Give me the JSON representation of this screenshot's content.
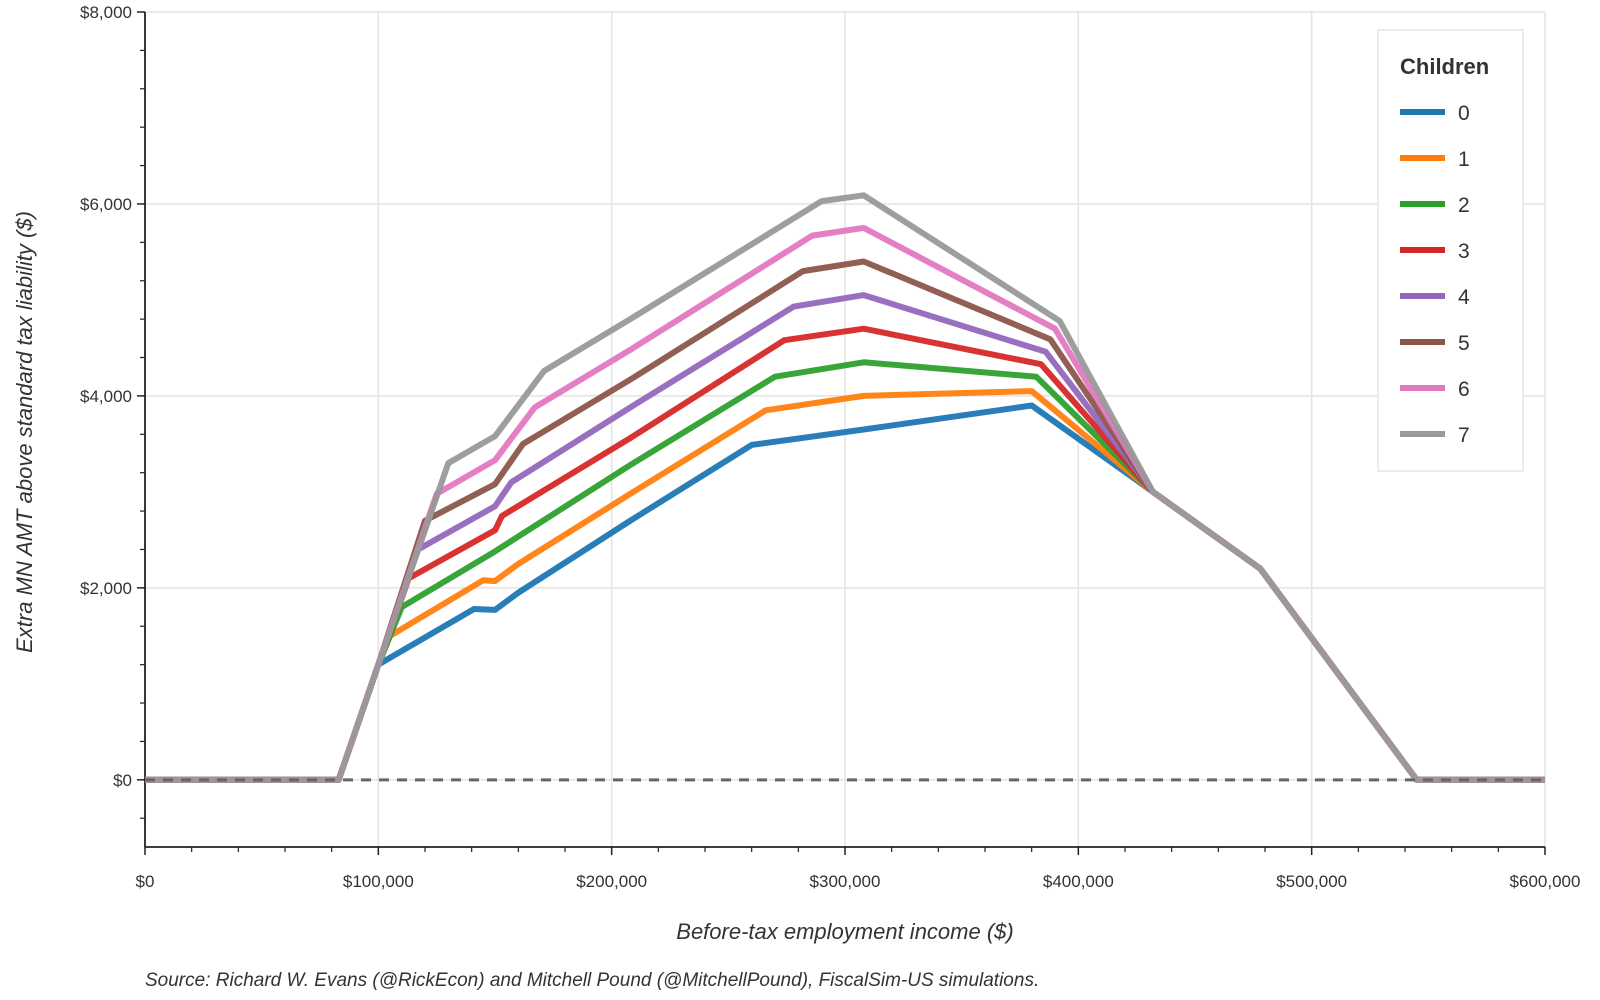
{
  "chart_data": {
    "type": "line",
    "title": "",
    "xlabel": "Before-tax employment income ($)",
    "ylabel": "Extra MN AMT above standard tax liability ($)",
    "source": "Source: Richard W. Evans (@RickEcon) and Mitchell Pound (@MitchellPound), FiscalSim-US simulations.",
    "xlim": [
      0,
      600000
    ],
    "ylim": [
      -700,
      8000
    ],
    "x_ticks": [
      0,
      100000,
      200000,
      300000,
      400000,
      500000,
      600000
    ],
    "x_tick_labels": [
      "$0",
      "$100,000",
      "$200,000",
      "$300,000",
      "$400,000",
      "$500,000",
      "$600,000"
    ],
    "y_ticks": [
      0,
      2000,
      4000,
      6000,
      8000
    ],
    "y_tick_labels": [
      "$0",
      "$2,000",
      "$4,000",
      "$6,000",
      "$8,000"
    ],
    "grid": true,
    "zero_line": "dashed",
    "legend": {
      "title": "Children",
      "position": "top-right"
    },
    "series": [
      {
        "name": "0",
        "color": "#1f77b4",
        "points": [
          [
            0,
            0
          ],
          [
            83000,
            0
          ],
          [
            100000,
            1200
          ],
          [
            141000,
            1780
          ],
          [
            150000,
            1770
          ],
          [
            160000,
            1950
          ],
          [
            208000,
            2700
          ],
          [
            260000,
            3490
          ],
          [
            308000,
            3650
          ],
          [
            380000,
            3900
          ],
          [
            432000,
            3000
          ],
          [
            478000,
            2200
          ],
          [
            545000,
            0
          ],
          [
            600000,
            0
          ]
        ]
      },
      {
        "name": "1",
        "color": "#ff7f0e",
        "points": [
          [
            0,
            0
          ],
          [
            83000,
            0
          ],
          [
            100000,
            1200
          ],
          [
            105000,
            1500
          ],
          [
            145000,
            2080
          ],
          [
            150000,
            2070
          ],
          [
            160000,
            2250
          ],
          [
            208000,
            2980
          ],
          [
            266000,
            3850
          ],
          [
            308000,
            4000
          ],
          [
            380000,
            4050
          ],
          [
            432000,
            3000
          ],
          [
            478000,
            2200
          ],
          [
            545000,
            0
          ],
          [
            600000,
            0
          ]
        ]
      },
      {
        "name": "2",
        "color": "#2ca02c",
        "points": [
          [
            0,
            0
          ],
          [
            83000,
            0
          ],
          [
            100000,
            1200
          ],
          [
            110000,
            1800
          ],
          [
            150000,
            2380
          ],
          [
            208000,
            3280
          ],
          [
            270000,
            4200
          ],
          [
            308000,
            4350
          ],
          [
            382000,
            4200
          ],
          [
            432000,
            3000
          ],
          [
            478000,
            2200
          ],
          [
            545000,
            0
          ],
          [
            600000,
            0
          ]
        ]
      },
      {
        "name": "3",
        "color": "#d62728",
        "points": [
          [
            0,
            0
          ],
          [
            83000,
            0
          ],
          [
            100000,
            1200
          ],
          [
            113000,
            2100
          ],
          [
            150000,
            2600
          ],
          [
            153000,
            2750
          ],
          [
            208000,
            3560
          ],
          [
            274000,
            4580
          ],
          [
            308000,
            4700
          ],
          [
            384000,
            4330
          ],
          [
            432000,
            3000
          ],
          [
            478000,
            2200
          ],
          [
            545000,
            0
          ],
          [
            600000,
            0
          ]
        ]
      },
      {
        "name": "4",
        "color": "#9467bd",
        "points": [
          [
            0,
            0
          ],
          [
            83000,
            0
          ],
          [
            100000,
            1200
          ],
          [
            117000,
            2400
          ],
          [
            150000,
            2850
          ],
          [
            157000,
            3100
          ],
          [
            208000,
            3880
          ],
          [
            278000,
            4930
          ],
          [
            308000,
            5050
          ],
          [
            386000,
            4460
          ],
          [
            432000,
            3000
          ],
          [
            478000,
            2200
          ],
          [
            545000,
            0
          ],
          [
            600000,
            0
          ]
        ]
      },
      {
        "name": "5",
        "color": "#8c564b",
        "points": [
          [
            0,
            0
          ],
          [
            83000,
            0
          ],
          [
            100000,
            1200
          ],
          [
            120000,
            2700
          ],
          [
            150000,
            3080
          ],
          [
            162000,
            3500
          ],
          [
            208000,
            4170
          ],
          [
            282000,
            5300
          ],
          [
            308000,
            5400
          ],
          [
            388000,
            4590
          ],
          [
            432000,
            3000
          ],
          [
            478000,
            2200
          ],
          [
            545000,
            0
          ],
          [
            600000,
            0
          ]
        ]
      },
      {
        "name": "6",
        "color": "#e377c2",
        "points": [
          [
            0,
            0
          ],
          [
            83000,
            0
          ],
          [
            100000,
            1200
          ],
          [
            125000,
            2980
          ],
          [
            150000,
            3330
          ],
          [
            167000,
            3880
          ],
          [
            208000,
            4480
          ],
          [
            286000,
            5670
          ],
          [
            308000,
            5750
          ],
          [
            390000,
            4700
          ],
          [
            432000,
            3000
          ],
          [
            478000,
            2200
          ],
          [
            545000,
            0
          ],
          [
            600000,
            0
          ]
        ]
      },
      {
        "name": "7",
        "color": "#999999",
        "points": [
          [
            0,
            0
          ],
          [
            83000,
            0
          ],
          [
            100000,
            1200
          ],
          [
            130000,
            3300
          ],
          [
            150000,
            3580
          ],
          [
            171000,
            4260
          ],
          [
            208000,
            4800
          ],
          [
            290000,
            6030
          ],
          [
            308000,
            6090
          ],
          [
            392000,
            4780
          ],
          [
            432000,
            3000
          ],
          [
            478000,
            2200
          ],
          [
            545000,
            0
          ],
          [
            600000,
            0
          ]
        ]
      }
    ]
  }
}
